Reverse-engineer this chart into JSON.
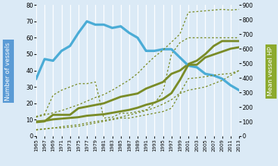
{
  "years": [
    1965,
    1967,
    1969,
    1971,
    1973,
    1975,
    1977,
    1979,
    1981,
    1983,
    1985,
    1987,
    1989,
    1991,
    1993,
    1995,
    1997,
    1999,
    2001,
    2003,
    2005,
    2007,
    2009,
    2011,
    2013
  ],
  "blue_solid": [
    35,
    47,
    46,
    52,
    55,
    63,
    70,
    68,
    68,
    66,
    67,
    63,
    60,
    52,
    52,
    53,
    53,
    48,
    43,
    42,
    38,
    37,
    35,
    31,
    28
  ],
  "olive_solid_left": [
    8.5,
    9,
    13,
    13,
    13,
    17,
    18,
    19,
    20,
    22,
    24,
    25,
    26,
    29,
    31,
    33,
    38,
    40,
    44,
    46,
    50,
    55,
    58,
    58,
    58
  ],
  "hp_solid": [
    100,
    105,
    115,
    120,
    125,
    130,
    140,
    145,
    150,
    160,
    170,
    180,
    195,
    215,
    230,
    255,
    295,
    385,
    490,
    490,
    540,
    560,
    580,
    600,
    610
  ],
  "hp_dotted_upper": [
    130,
    145,
    160,
    175,
    195,
    215,
    240,
    265,
    285,
    315,
    350,
    385,
    430,
    490,
    545,
    590,
    645,
    700,
    850,
    855,
    860,
    865,
    870,
    865,
    870
  ],
  "hp_dotted_lower": [
    42,
    48,
    55,
    65,
    72,
    78,
    90,
    100,
    108,
    118,
    130,
    145,
    160,
    175,
    195,
    220,
    250,
    295,
    395,
    400,
    408,
    418,
    425,
    430,
    450
  ],
  "olive_dotted_upper": [
    12,
    13.5,
    25,
    28,
    30,
    32,
    32,
    33,
    11,
    11.5,
    14,
    14,
    15,
    16,
    20,
    27,
    50,
    57,
    60,
    60,
    60,
    60,
    60,
    60,
    60
  ],
  "olive_dotted_lower": [
    4,
    4.5,
    5,
    5,
    5.5,
    6,
    7,
    8,
    9,
    10,
    11,
    11,
    12,
    13,
    14,
    15,
    17,
    26,
    28,
    29,
    30,
    32,
    34,
    37,
    40
  ],
  "bg_color": "#dbeaf6",
  "blue_color": "#4bacd6",
  "olive_color": "#7a8c28",
  "left_label": "Number of vessels",
  "right_label": "Mean vessel HP",
  "left_ylim": [
    0,
    80
  ],
  "right_ylim": [
    0,
    900
  ],
  "left_yticks": [
    0,
    10,
    20,
    30,
    40,
    50,
    60,
    70,
    80
  ],
  "right_yticks": [
    0,
    100,
    200,
    300,
    400,
    500,
    600,
    700,
    800,
    900
  ],
  "left_label_bg": "#5b9bd5",
  "right_label_bg": "#8caa2e",
  "grid_color": "#ffffff",
  "figsize": [
    4.0,
    2.39
  ],
  "dpi": 100
}
